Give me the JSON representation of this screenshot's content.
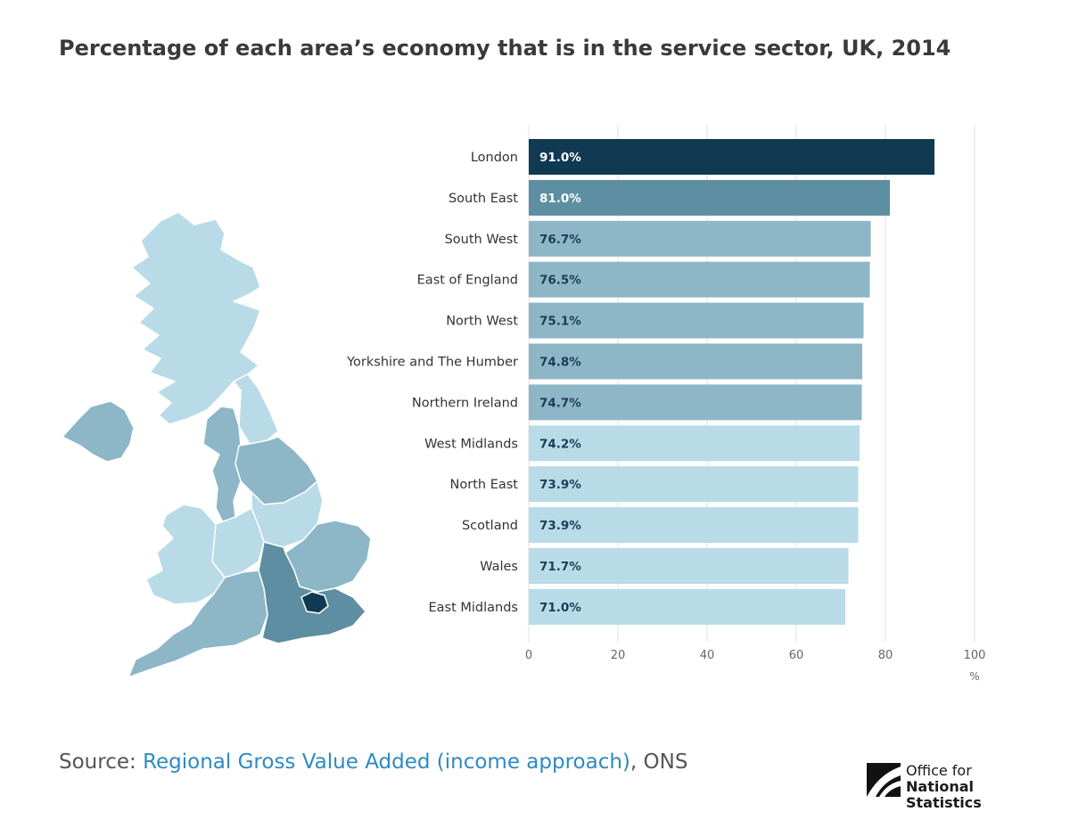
{
  "title": "Percentage of each area’s economy that is in the service sector, UK, 2014",
  "chart_data": {
    "type": "bar",
    "orientation": "horizontal",
    "title": "Percentage of each area’s economy that is in the service sector, UK, 2014",
    "categories": [
      "London",
      "South East",
      "South West",
      "East of England",
      "North West",
      "Yorkshire and The Humber",
      "Northern Ireland",
      "West Midlands",
      "North East",
      "Scotland",
      "Wales",
      "East Midlands"
    ],
    "values": [
      91.0,
      81.0,
      76.7,
      76.5,
      75.1,
      74.8,
      74.7,
      74.2,
      73.9,
      73.9,
      71.7,
      71.0
    ],
    "data_labels": [
      "91.0%",
      "81.0%",
      "76.7%",
      "76.5%",
      "75.1%",
      "74.8%",
      "74.7%",
      "74.2%",
      "73.9%",
      "73.9%",
      "71.7%",
      "71.0%"
    ],
    "xlim": [
      0,
      100
    ],
    "xticks": [
      "0",
      "20",
      "40",
      "60",
      "80",
      "100"
    ],
    "xunit": "%",
    "grid": true,
    "bar_colors": [
      "#0f3a52",
      "#5e8ea2",
      "#8db6c7",
      "#8db6c7",
      "#8db6c7",
      "#8db6c7",
      "#8db6c7",
      "#b8dbe7",
      "#b8dbe7",
      "#b8dbe7",
      "#b8dbe7",
      "#b8dbe7"
    ],
    "label_colors": [
      "#ffffff",
      "#ffffff",
      "#1c3d57",
      "#1c3d57",
      "#1c3d57",
      "#1c3d57",
      "#1c3d57",
      "#1c3d57",
      "#1c3d57",
      "#1c3d57",
      "#1c3d57",
      "#1c3d57"
    ]
  },
  "map": {
    "colors": {
      "scotland": "#b8dbe7",
      "northern_ireland": "#8db6c7",
      "north_east": "#b8dbe7",
      "north_west": "#8db6c7",
      "yorkshire": "#8db6c7",
      "east_midlands": "#b8dbe7",
      "west_midlands": "#b8dbe7",
      "wales": "#b8dbe7",
      "east_of_england": "#8db6c7",
      "south_west": "#8db6c7",
      "south_east": "#5e8ea2",
      "london": "#0f3a52"
    }
  },
  "source": {
    "prefix": "Source: ",
    "link_text": "Regional Gross Value Added (income approach)",
    "suffix": ", ONS"
  },
  "logo": {
    "line1": "Office for",
    "line2": "National Statistics"
  }
}
